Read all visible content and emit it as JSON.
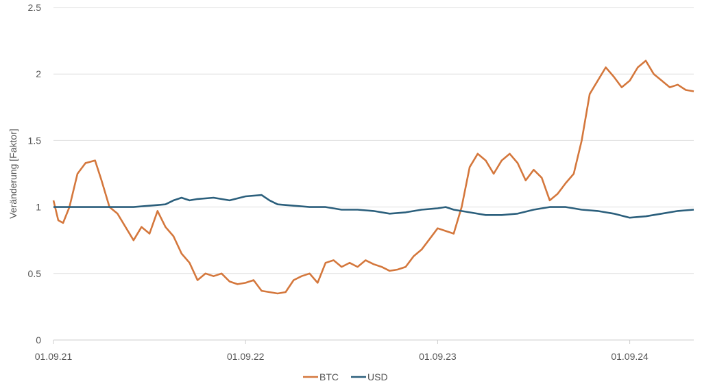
{
  "chart_data": {
    "type": "line",
    "ylabel": "Veränderung [Faktor]",
    "ylim": [
      0,
      2.5
    ],
    "y_ticks": [
      "0",
      "0.5",
      "1",
      "1.5",
      "2",
      "2.5"
    ],
    "y_tick_values": [
      0,
      0.5,
      1,
      1.5,
      2,
      2.5
    ],
    "x_tick_labels": [
      "01.09.21",
      "01.09.22",
      "01.09.23",
      "01.09.24"
    ],
    "x_tick_values": [
      0,
      12,
      24,
      36
    ],
    "x_unit": "months since 01.09.21",
    "xlim": [
      0,
      40
    ],
    "grid": true,
    "legend_position": "bottom",
    "series": [
      {
        "name": "BTC",
        "color": "#d4773c",
        "x": [
          0,
          0.3,
          0.6,
          1,
          1.5,
          2,
          2.6,
          3,
          3.5,
          4,
          4.5,
          5,
          5.5,
          6,
          6.5,
          7,
          7.5,
          8,
          8.5,
          9,
          9.5,
          10,
          10.5,
          11,
          11.5,
          12,
          12.5,
          13,
          13.5,
          14,
          14.5,
          15,
          15.5,
          16,
          16.5,
          17,
          17.5,
          18,
          18.5,
          19,
          19.5,
          20,
          20.5,
          21,
          21.5,
          22,
          22.5,
          23,
          23.5,
          24,
          24.5,
          25,
          25.5,
          26,
          26.5,
          27,
          27.5,
          28,
          28.5,
          29,
          29.5,
          30,
          30.5,
          31,
          31.5,
          32,
          32.5,
          33,
          33.5,
          34,
          34.5,
          35,
          35.5,
          36,
          36.5,
          37,
          37.5,
          38,
          38.5,
          39,
          39.5,
          40
        ],
        "values": [
          1.05,
          0.9,
          0.88,
          1.0,
          1.25,
          1.33,
          1.35,
          1.2,
          1.0,
          0.95,
          0.85,
          0.75,
          0.85,
          0.8,
          0.97,
          0.85,
          0.78,
          0.65,
          0.58,
          0.45,
          0.5,
          0.48,
          0.5,
          0.44,
          0.42,
          0.43,
          0.45,
          0.37,
          0.36,
          0.35,
          0.36,
          0.45,
          0.48,
          0.5,
          0.43,
          0.58,
          0.6,
          0.55,
          0.58,
          0.55,
          0.6,
          0.57,
          0.55,
          0.52,
          0.53,
          0.55,
          0.63,
          0.68,
          0.76,
          0.84,
          0.82,
          0.8,
          1.0,
          1.3,
          1.4,
          1.35,
          1.25,
          1.35,
          1.4,
          1.33,
          1.2,
          1.28,
          1.22,
          1.05,
          1.1,
          1.18,
          1.25,
          1.5,
          1.85,
          1.95,
          2.05,
          1.98,
          1.9,
          1.95,
          2.05,
          2.1,
          2.0,
          1.95,
          1.9,
          1.92,
          1.88,
          1.87
        ]
      },
      {
        "name": "USD",
        "color": "#2b5f7c",
        "x": [
          0,
          1,
          2,
          3,
          4,
          5,
          6,
          7,
          7.5,
          8,
          8.5,
          9,
          10,
          11,
          12,
          13,
          13.5,
          14,
          15,
          16,
          17,
          18,
          19,
          20,
          21,
          22,
          23,
          24,
          24.5,
          25,
          26,
          27,
          28,
          29,
          30,
          31,
          32,
          33,
          34,
          35,
          36,
          37,
          38,
          39,
          40
        ],
        "values": [
          1.0,
          1.0,
          1.0,
          1.0,
          1.0,
          1.0,
          1.01,
          1.02,
          1.05,
          1.07,
          1.05,
          1.06,
          1.07,
          1.05,
          1.08,
          1.09,
          1.05,
          1.02,
          1.01,
          1.0,
          1.0,
          0.98,
          0.98,
          0.97,
          0.95,
          0.96,
          0.98,
          0.99,
          1.0,
          0.98,
          0.96,
          0.94,
          0.94,
          0.95,
          0.98,
          1.0,
          1.0,
          0.98,
          0.97,
          0.95,
          0.92,
          0.93,
          0.95,
          0.97,
          0.98
        ]
      }
    ]
  }
}
